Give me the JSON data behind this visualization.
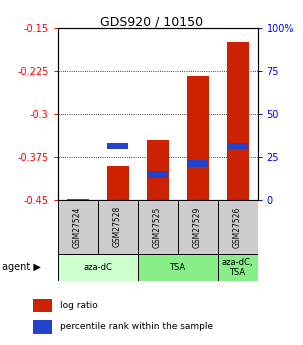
{
  "title": "GDS920 / 10150",
  "samples": [
    "GSM27524",
    "GSM27528",
    "GSM27525",
    "GSM27529",
    "GSM27526"
  ],
  "bar_bottoms": [
    -0.45,
    -0.45,
    -0.45,
    -0.45,
    -0.45
  ],
  "bar_tops": [
    -0.448,
    -0.39,
    -0.345,
    -0.235,
    -0.175
  ],
  "blue_y": [
    null,
    -0.356,
    -0.405,
    -0.386,
    -0.356
  ],
  "ylim_left": [
    -0.45,
    -0.15
  ],
  "ylim_right": [
    0,
    100
  ],
  "yticks_left": [
    -0.45,
    -0.375,
    -0.3,
    -0.225,
    -0.15
  ],
  "yticks_right": [
    0,
    25,
    50,
    75,
    100
  ],
  "ytick_labels_left": [
    "-0.45",
    "-0.375",
    "-0.3",
    "-0.225",
    "-0.15"
  ],
  "ytick_labels_right": [
    "0",
    "25",
    "50",
    "75",
    "100%"
  ],
  "bar_color": "#cc2200",
  "blue_color": "#2244cc",
  "group_defs": [
    {
      "start": 0,
      "end": 1,
      "label": "aza-dC",
      "color": "#ccffcc"
    },
    {
      "start": 2,
      "end": 3,
      "label": "TSA",
      "color": "#88ee88"
    },
    {
      "start": 4,
      "end": 4,
      "label": "aza-dC,\nTSA",
      "color": "#88ee88"
    }
  ],
  "background_color": "#ffffff",
  "plot_bg": "#ffffff"
}
